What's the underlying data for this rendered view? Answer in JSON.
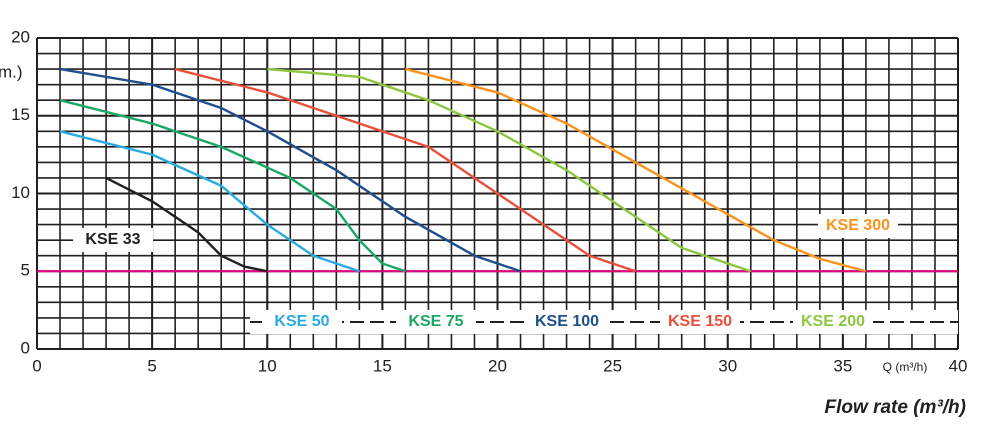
{
  "chart_data": {
    "type": "line",
    "x_label": "Flow rate (m³/h)",
    "x_unit_label": "Q (m³/h)",
    "y_label": "m.)",
    "xlim": [
      0,
      40
    ],
    "xticks": [
      0,
      5,
      10,
      15,
      20,
      25,
      30,
      35,
      40
    ],
    "ylim": [
      0,
      20
    ],
    "yticks": [
      0,
      5,
      10,
      15,
      20
    ],
    "grid": true,
    "reference_line": {
      "value": 5,
      "color": "#e6007e"
    },
    "series": [
      {
        "name": "KSE 33",
        "color": "#231f20",
        "x": [
          3,
          5,
          7,
          8,
          9,
          10
        ],
        "values": [
          11,
          9.5,
          7.5,
          6,
          5.3,
          5
        ]
      },
      {
        "name": "KSE 50",
        "color": "#29abe2",
        "x": [
          1,
          5,
          8,
          10,
          12,
          14
        ],
        "values": [
          14,
          12.5,
          10.5,
          8,
          6,
          5
        ]
      },
      {
        "name": "KSE 75",
        "color": "#19a866",
        "x": [
          1,
          5,
          8,
          11,
          13,
          14,
          15,
          16
        ],
        "values": [
          16,
          14.5,
          13,
          11,
          9,
          7,
          5.5,
          5
        ]
      },
      {
        "name": "KSE 100",
        "color": "#1f4e8c",
        "x": [
          1,
          5,
          8,
          10,
          13,
          16,
          19,
          21
        ],
        "values": [
          18,
          17,
          15.5,
          14,
          11.5,
          8.5,
          6,
          5
        ]
      },
      {
        "name": "KSE 150",
        "color": "#e8503a",
        "x": [
          6,
          10,
          14,
          17,
          20,
          22,
          24,
          26
        ],
        "values": [
          18,
          16.5,
          14.5,
          13,
          10,
          8,
          6,
          5
        ]
      },
      {
        "name": "KSE 200",
        "color": "#8dc63f",
        "x": [
          10,
          14,
          17,
          20,
          23,
          26,
          28,
          31
        ],
        "values": [
          18,
          17.5,
          16,
          14,
          11.5,
          8.5,
          6.5,
          5
        ]
      },
      {
        "name": "KSE 300",
        "color": "#f7941d",
        "x": [
          16,
          20,
          23,
          26,
          29,
          32,
          34,
          36
        ],
        "values": [
          18,
          16.5,
          14.5,
          12,
          9.5,
          7,
          5.8,
          5
        ]
      }
    ]
  }
}
